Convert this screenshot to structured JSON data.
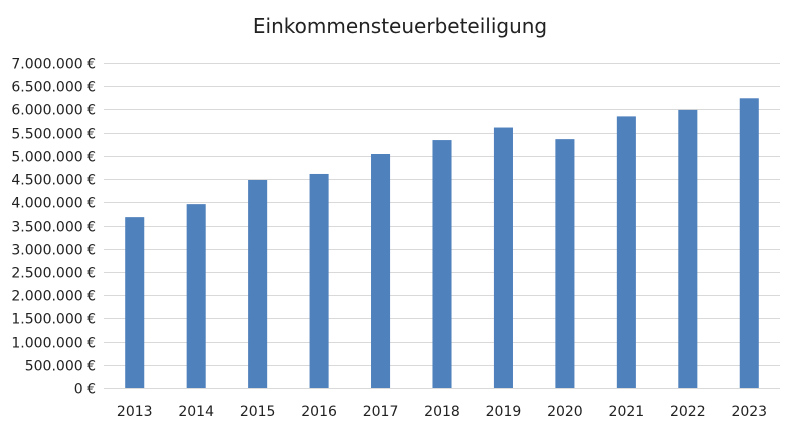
{
  "chart_data": {
    "type": "bar",
    "title": "Einkommensteuerbeteiligung",
    "categories": [
      "2013",
      "2014",
      "2015",
      "2016",
      "2017",
      "2018",
      "2019",
      "2020",
      "2021",
      "2022",
      "2023"
    ],
    "values": [
      3680000,
      3960000,
      4480000,
      4610000,
      5040000,
      5340000,
      5610000,
      5360000,
      5850000,
      5990000,
      6240000
    ],
    "ylim": [
      0,
      7000000
    ],
    "y_ticks": [
      {
        "value": 0,
        "label": "0 €"
      },
      {
        "value": 500000,
        "label": "500.000 €"
      },
      {
        "value": 1000000,
        "label": "1.000.000 €"
      },
      {
        "value": 1500000,
        "label": "1.500.000 €"
      },
      {
        "value": 2000000,
        "label": "2.000.000 €"
      },
      {
        "value": 2500000,
        "label": "2.500.000 €"
      },
      {
        "value": 3000000,
        "label": "3.000.000 €"
      },
      {
        "value": 3500000,
        "label": "3.500.000 €"
      },
      {
        "value": 4000000,
        "label": "4.000.000 €"
      },
      {
        "value": 4500000,
        "label": "4.500.000 €"
      },
      {
        "value": 5000000,
        "label": "5.000.000 €"
      },
      {
        "value": 5500000,
        "label": "5.500.000 €"
      },
      {
        "value": 6000000,
        "label": "6.000.000 €"
      },
      {
        "value": 6500000,
        "label": "6.500.000 €"
      },
      {
        "value": 7000000,
        "label": "7.000.000 €"
      }
    ],
    "grid": true,
    "legend": "none",
    "bar_color": "#4f81bd",
    "grid_color": "#d9d9d9"
  }
}
